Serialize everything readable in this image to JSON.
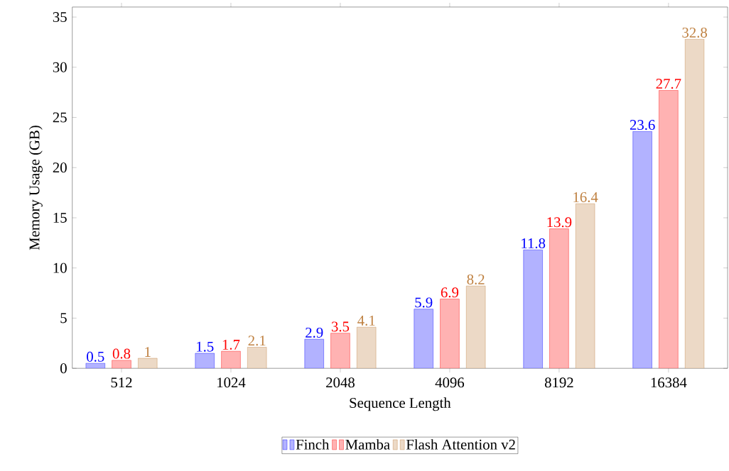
{
  "chart_data": {
    "type": "bar",
    "xlabel": "Sequence Length",
    "ylabel": "Memory Usage (GB)",
    "categories": [
      "512",
      "1024",
      "2048",
      "4096",
      "8192",
      "16384"
    ],
    "series": [
      {
        "name": "Finch",
        "color": "#0000ff",
        "values": [
          0.5,
          1.5,
          2.9,
          5.9,
          11.8,
          23.6
        ]
      },
      {
        "name": "Mamba",
        "color": "#ff0000",
        "values": [
          0.8,
          1.7,
          3.5,
          6.9,
          13.9,
          27.7
        ]
      },
      {
        "name": "Flash Attention v2",
        "color": "#bf8040",
        "values": [
          1,
          2.1,
          4.1,
          8.2,
          16.4,
          32.8
        ]
      }
    ],
    "ylim": [
      0,
      36
    ],
    "yticks": [
      0,
      5,
      10,
      15,
      20,
      25,
      30,
      35
    ],
    "data_labels": true,
    "legend": "bottom"
  }
}
